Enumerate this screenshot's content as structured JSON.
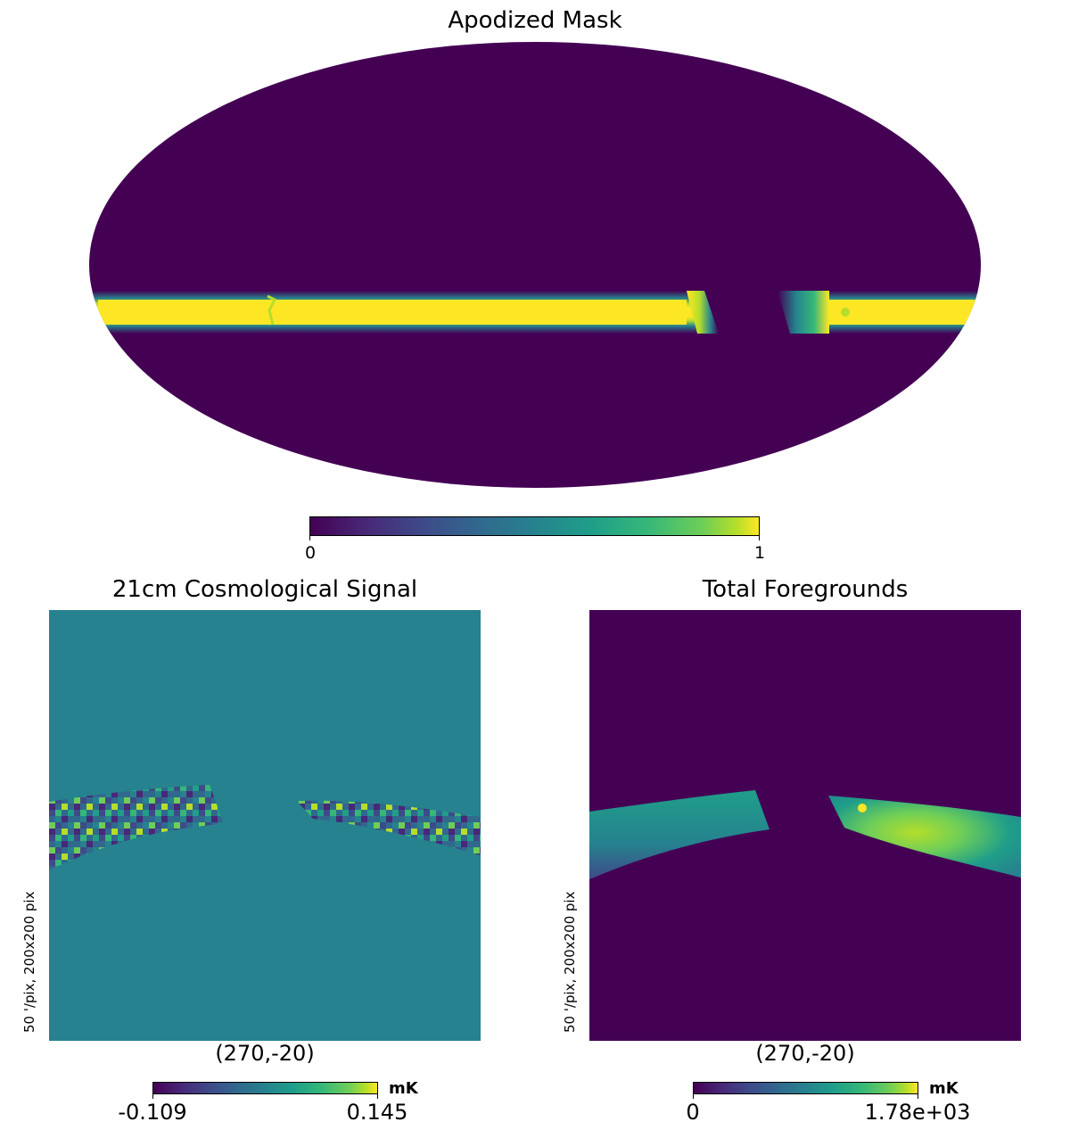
{
  "colors": {
    "viridis_low": "#440154",
    "viridis_mid": "#26828e",
    "viridis_high": "#fde725",
    "viridis_green": "#35b779"
  },
  "chart_data": [
    {
      "type": "heatmap",
      "title": "Apodized Mask",
      "projection": "mollweide",
      "colormap": "viridis",
      "colorbar": {
        "min_label": "0",
        "max_label": "1",
        "range": [
          0,
          1
        ]
      },
      "description_values": {
        "background": 0,
        "band": 1
      }
    },
    {
      "type": "heatmap",
      "title": "21cm Cosmological Signal",
      "projection": "gnomonic",
      "center_label": "(270,-20)",
      "side_label": "50 '/pix,   200x200 pix",
      "colormap": "viridis",
      "colorbar": {
        "min_label": "-0.109",
        "max_label": "0.145",
        "unit": "mK",
        "range": [
          -0.109,
          0.145
        ]
      }
    },
    {
      "type": "heatmap",
      "title": "Total Foregrounds",
      "projection": "gnomonic",
      "center_label": "(270,-20)",
      "side_label": "50 '/pix,   200x200 pix",
      "colormap": "viridis",
      "colorbar": {
        "min_label": "0",
        "max_label": "1.78e+03",
        "unit": "mK",
        "range": [
          0,
          1780
        ]
      }
    }
  ]
}
